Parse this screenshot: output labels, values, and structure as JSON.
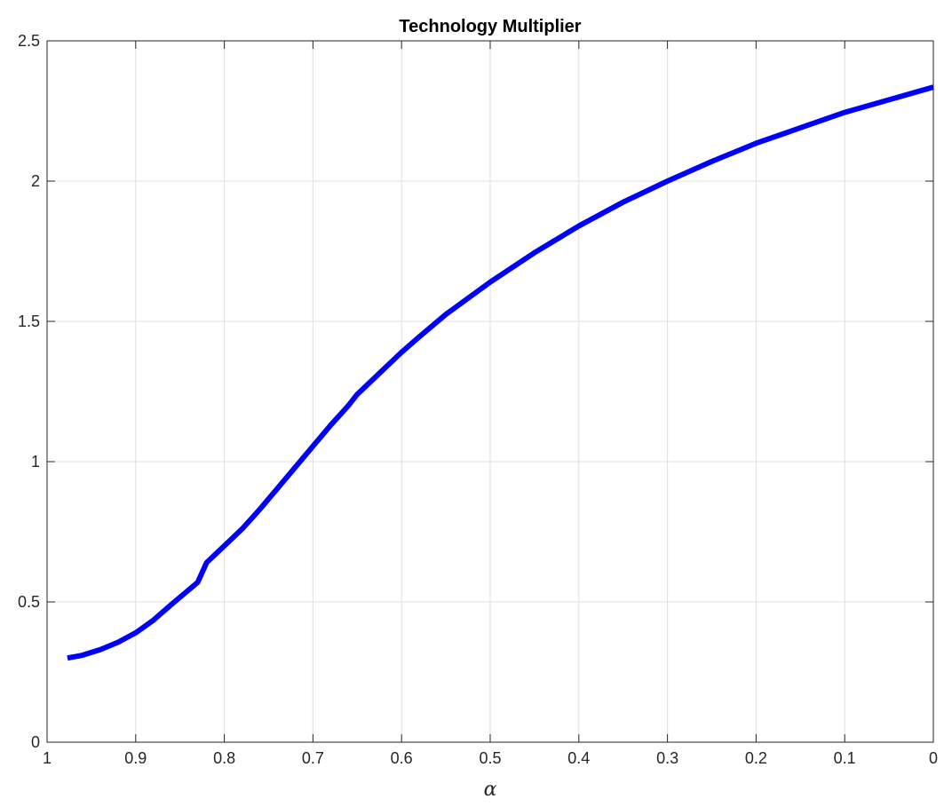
{
  "chart_data": {
    "type": "line",
    "title": "Technology Multiplier",
    "xlabel": "α",
    "ylabel": "",
    "xlim": [
      0,
      1
    ],
    "x_reversed": true,
    "ylim": [
      0,
      2.5
    ],
    "xticks": [
      {
        "value": 1,
        "label": "1"
      },
      {
        "value": 0.9,
        "label": "0.9"
      },
      {
        "value": 0.8,
        "label": "0.8"
      },
      {
        "value": 0.7,
        "label": "0.7"
      },
      {
        "value": 0.6,
        "label": "0.6"
      },
      {
        "value": 0.5,
        "label": "0.5"
      },
      {
        "value": 0.4,
        "label": "0.4"
      },
      {
        "value": 0.3,
        "label": "0.3"
      },
      {
        "value": 0.2,
        "label": "0.2"
      },
      {
        "value": 0.1,
        "label": "0.1"
      },
      {
        "value": 0,
        "label": "0"
      }
    ],
    "yticks": [
      {
        "value": 0,
        "label": "0"
      },
      {
        "value": 0.5,
        "label": "0.5"
      },
      {
        "value": 1,
        "label": "1"
      },
      {
        "value": 1.5,
        "label": "1.5"
      },
      {
        "value": 2,
        "label": "2"
      },
      {
        "value": 2.5,
        "label": "2.5"
      }
    ],
    "grid": true,
    "series": [
      {
        "color": "#0000ff",
        "x": [
          0.977,
          0.96,
          0.94,
          0.92,
          0.9,
          0.88,
          0.86,
          0.845,
          0.83,
          0.82,
          0.8,
          0.78,
          0.76,
          0.74,
          0.72,
          0.7,
          0.68,
          0.66,
          0.65,
          0.62,
          0.6,
          0.58,
          0.55,
          0.5,
          0.45,
          0.4,
          0.35,
          0.3,
          0.25,
          0.2,
          0.15,
          0.1,
          0.05,
          0.0
        ],
        "y": [
          0.3,
          0.31,
          0.33,
          0.356,
          0.39,
          0.435,
          0.49,
          0.53,
          0.57,
          0.64,
          0.7,
          0.76,
          0.83,
          0.905,
          0.98,
          1.055,
          1.13,
          1.2,
          1.24,
          1.33,
          1.39,
          1.445,
          1.525,
          1.64,
          1.745,
          1.84,
          1.925,
          2.0,
          2.07,
          2.135,
          2.19,
          2.245,
          2.29,
          2.335
        ]
      }
    ]
  }
}
